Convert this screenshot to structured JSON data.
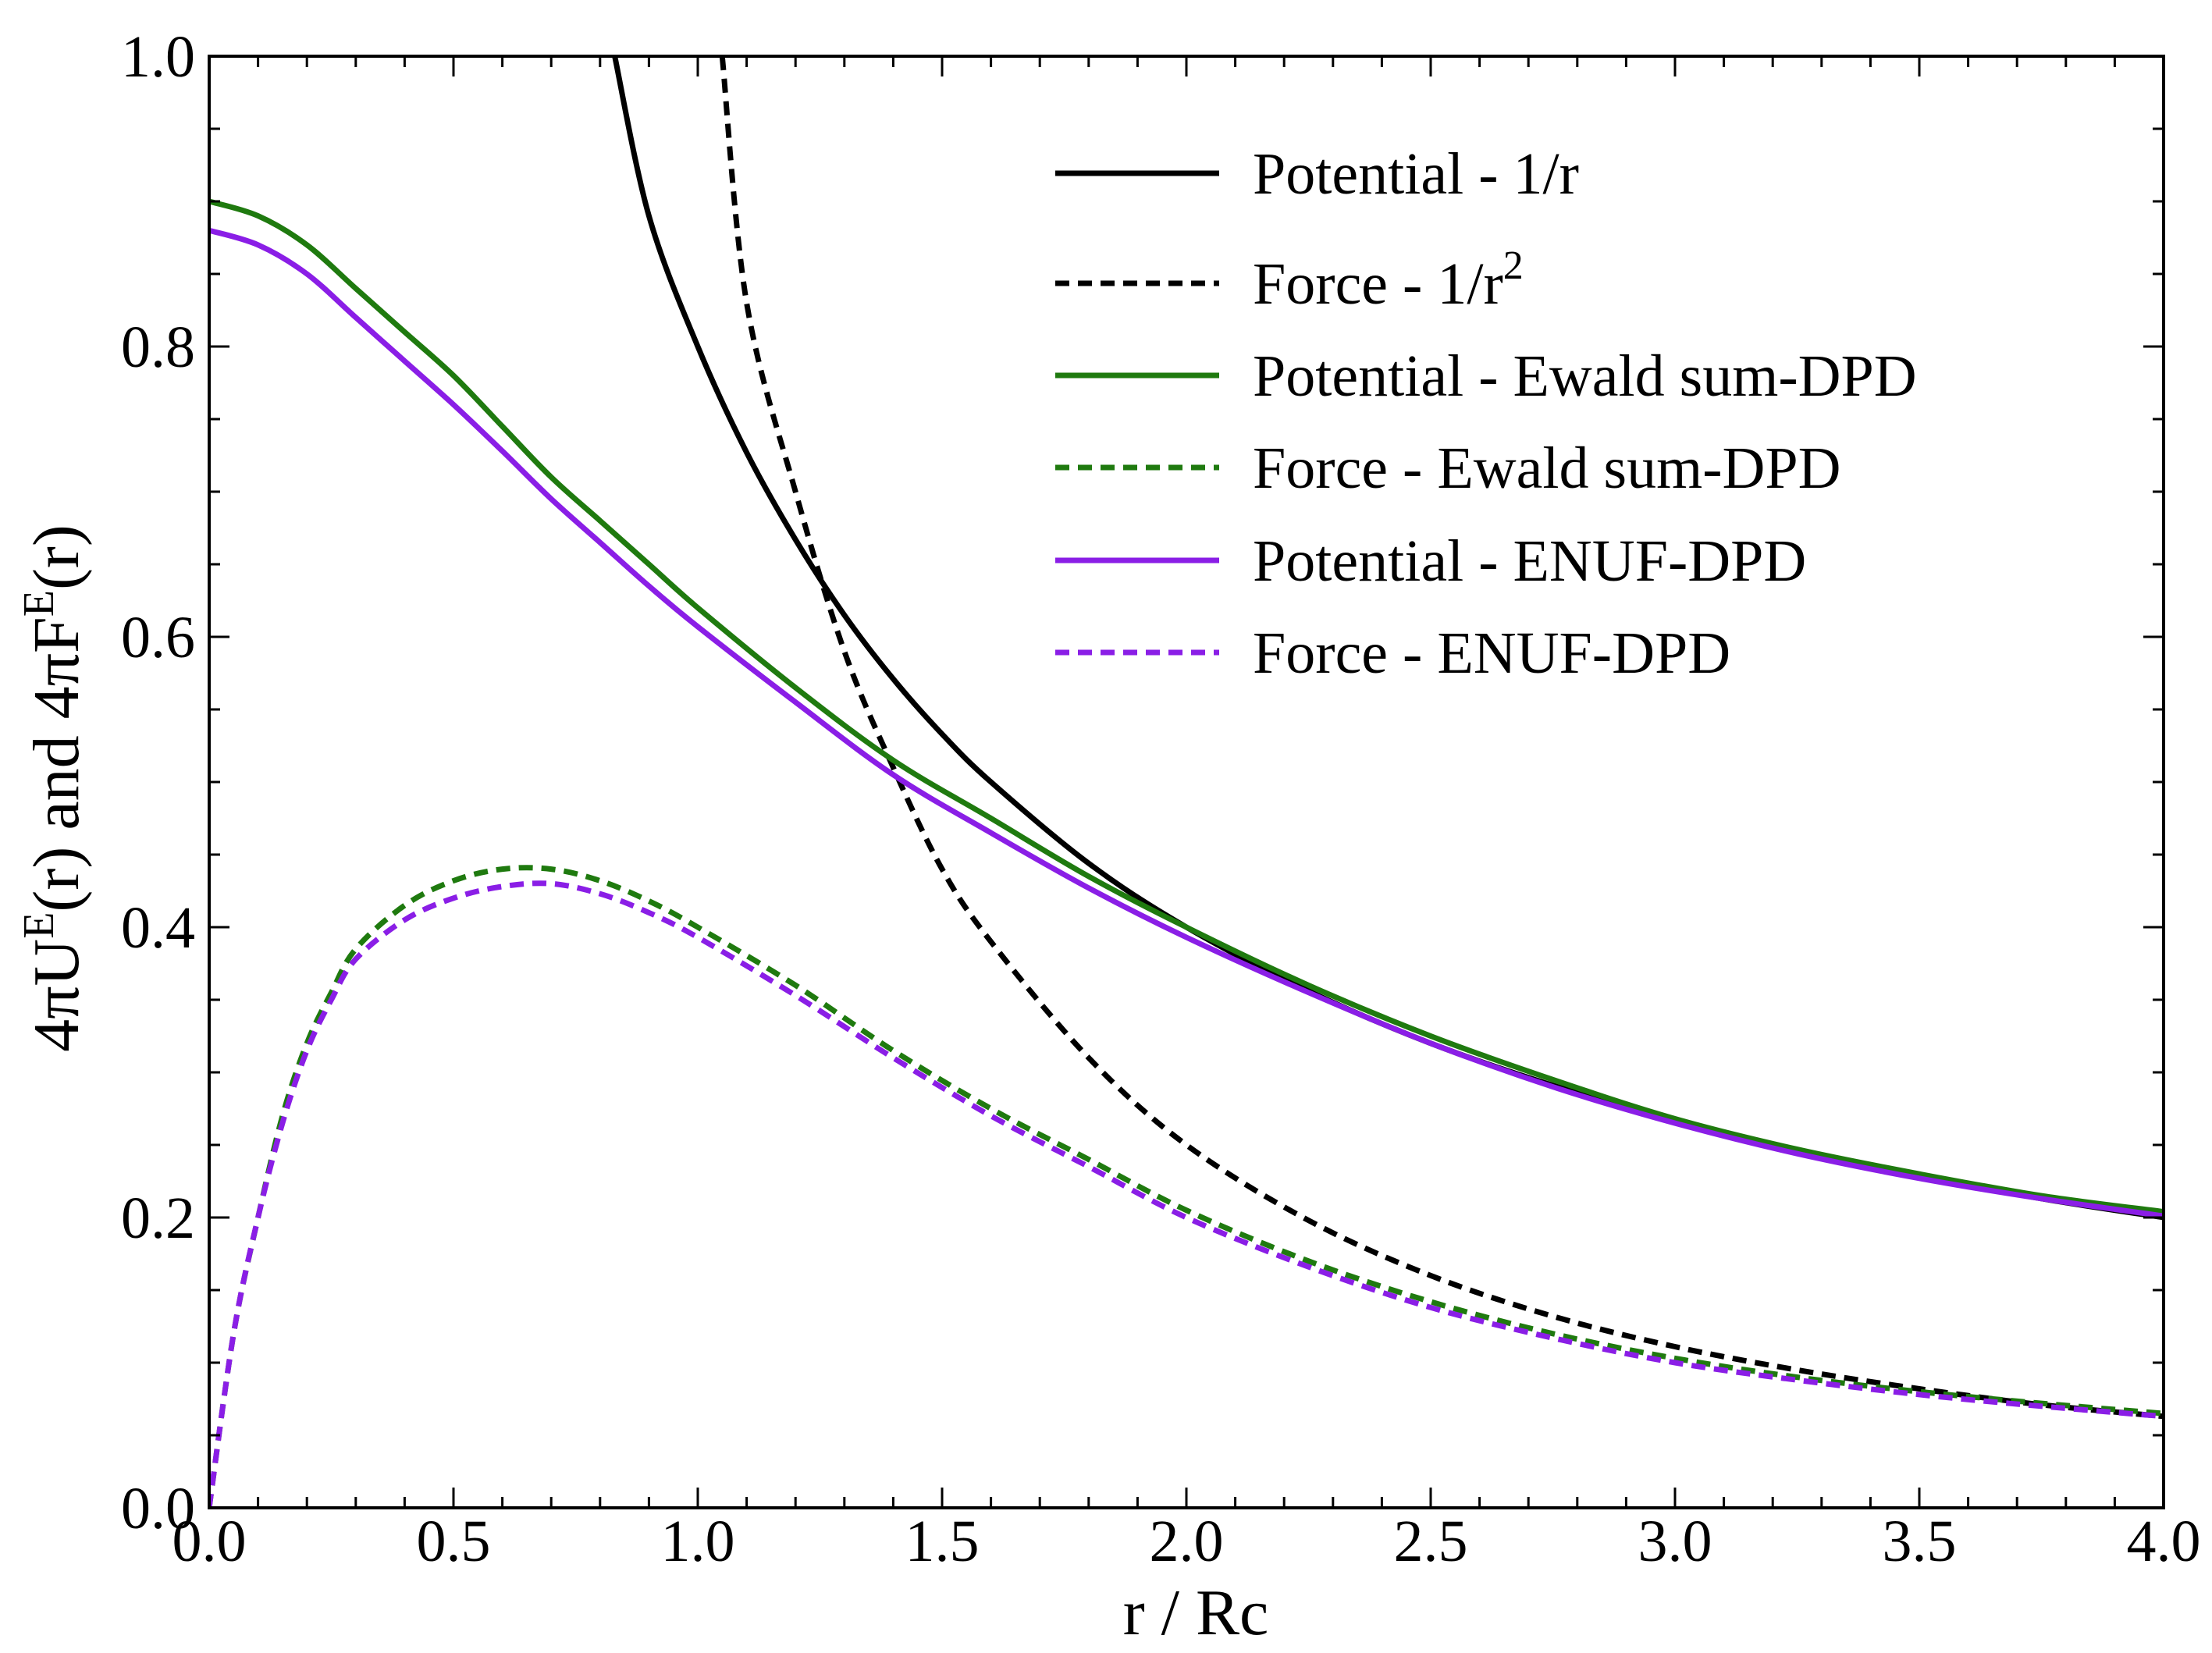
{
  "chart_data": {
    "type": "line",
    "title": "",
    "xlabel": "r / Rc",
    "ylabel": "4πU^E(r) and 4πF^E(r)",
    "ylabel_parts": {
      "a": "4πU",
      "b": "E",
      "c": "(r) and 4πF",
      "d": "E",
      "e": "(r)"
    },
    "xlim": [
      0.0,
      4.0
    ],
    "ylim": [
      0.0,
      1.0
    ],
    "grid": false,
    "legend_position": "top-right",
    "x_ticks": [
      "0.0",
      "0.5",
      "1.0",
      "1.5",
      "2.0",
      "2.5",
      "3.0",
      "3.5",
      "4.0"
    ],
    "y_ticks": [
      "0.0",
      "0.2",
      "0.4",
      "0.6",
      "0.8",
      "1.0"
    ],
    "series": [
      {
        "name": "Potential - 1/r",
        "color": "#000000",
        "dashed": false,
        "x": [
          0.83,
          0.9,
          1.0,
          1.1,
          1.2,
          1.3,
          1.4,
          1.5,
          1.6,
          1.8,
          2.0,
          2.25,
          2.5,
          2.75,
          3.0,
          3.25,
          3.5,
          3.75,
          4.0
        ],
        "y": [
          1.0,
          0.89,
          0.8,
          0.727,
          0.667,
          0.615,
          0.571,
          0.533,
          0.5,
          0.444,
          0.4,
          0.356,
          0.32,
          0.291,
          0.267,
          0.246,
          0.229,
          0.213,
          0.2
        ]
      },
      {
        "name": "Force - 1/r",
        "legend_main": "Force - 1/r",
        "legend_sup": "2",
        "color": "#000000",
        "dashed": true,
        "x": [
          1.05,
          1.1,
          1.2,
          1.3,
          1.4,
          1.5,
          1.6,
          1.8,
          2.0,
          2.25,
          2.5,
          2.75,
          3.0,
          3.25,
          3.5,
          3.75,
          4.0
        ],
        "y": [
          1.0,
          0.83,
          0.7,
          0.59,
          0.51,
          0.44,
          0.39,
          0.31,
          0.25,
          0.198,
          0.16,
          0.132,
          0.111,
          0.095,
          0.082,
          0.071,
          0.063
        ]
      },
      {
        "name": "Potential - Ewald sum-DPD",
        "color": "#1f7a0f",
        "dashed": false,
        "x": [
          0.0,
          0.1,
          0.2,
          0.3,
          0.4,
          0.5,
          0.6,
          0.7,
          0.8,
          0.9,
          1.0,
          1.2,
          1.4,
          1.6,
          1.8,
          2.0,
          2.25,
          2.5,
          2.75,
          3.0,
          3.25,
          3.5,
          3.75,
          4.0
        ],
        "y": [
          0.9,
          0.89,
          0.87,
          0.84,
          0.81,
          0.78,
          0.745,
          0.71,
          0.68,
          0.65,
          0.62,
          0.565,
          0.515,
          0.475,
          0.435,
          0.4,
          0.36,
          0.325,
          0.295,
          0.268,
          0.247,
          0.23,
          0.215,
          0.204
        ]
      },
      {
        "name": "Force - Ewald sum-DPD",
        "color": "#1f7a0f",
        "dashed": true,
        "x": [
          0.0,
          0.05,
          0.1,
          0.15,
          0.2,
          0.25,
          0.3,
          0.4,
          0.5,
          0.6,
          0.7,
          0.8,
          0.9,
          1.0,
          1.2,
          1.4,
          1.6,
          1.8,
          2.0,
          2.25,
          2.5,
          2.75,
          3.0,
          3.25,
          3.5,
          3.75,
          4.0
        ],
        "y": [
          0.0,
          0.12,
          0.2,
          0.27,
          0.32,
          0.355,
          0.385,
          0.415,
          0.432,
          0.44,
          0.44,
          0.432,
          0.418,
          0.4,
          0.36,
          0.315,
          0.275,
          0.24,
          0.205,
          0.17,
          0.142,
          0.12,
          0.103,
          0.09,
          0.08,
          0.072,
          0.065
        ]
      },
      {
        "name": "Potential - ENUF-DPD",
        "color": "#8a1ee6",
        "dashed": false,
        "x": [
          0.0,
          0.1,
          0.2,
          0.3,
          0.4,
          0.5,
          0.6,
          0.7,
          0.8,
          0.9,
          1.0,
          1.2,
          1.4,
          1.6,
          1.8,
          2.0,
          2.25,
          2.5,
          2.75,
          3.0,
          3.25,
          3.5,
          3.75,
          4.0
        ],
        "y": [
          0.88,
          0.87,
          0.85,
          0.82,
          0.79,
          0.76,
          0.728,
          0.695,
          0.665,
          0.635,
          0.607,
          0.555,
          0.505,
          0.465,
          0.427,
          0.393,
          0.355,
          0.32,
          0.29,
          0.265,
          0.244,
          0.227,
          0.213,
          0.201
        ]
      },
      {
        "name": "Force - ENUF-DPD",
        "color": "#8a1ee6",
        "dashed": true,
        "x": [
          0.0,
          0.05,
          0.1,
          0.15,
          0.2,
          0.25,
          0.3,
          0.4,
          0.5,
          0.6,
          0.7,
          0.8,
          0.9,
          1.0,
          1.2,
          1.4,
          1.6,
          1.8,
          2.0,
          2.25,
          2.5,
          2.75,
          3.0,
          3.25,
          3.5,
          3.75,
          4.0
        ],
        "y": [
          0.0,
          0.12,
          0.2,
          0.265,
          0.315,
          0.35,
          0.378,
          0.405,
          0.42,
          0.428,
          0.43,
          0.423,
          0.41,
          0.393,
          0.353,
          0.31,
          0.27,
          0.235,
          0.2,
          0.166,
          0.138,
          0.117,
          0.1,
          0.088,
          0.078,
          0.07,
          0.063
        ]
      }
    ]
  }
}
